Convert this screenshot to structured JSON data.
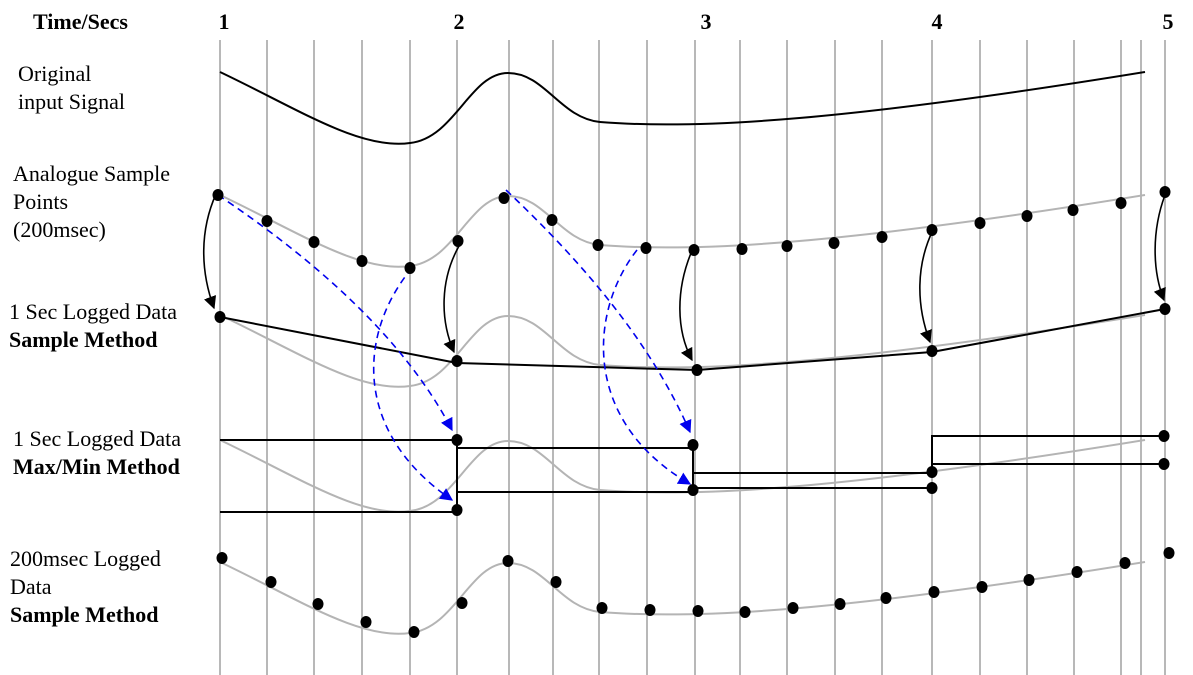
{
  "header": {
    "axis_title": "Time/Secs",
    "ticks": [
      "1",
      "2",
      "3",
      "4",
      "5"
    ]
  },
  "rows": {
    "original": {
      "line1": "Original",
      "line2": "input Signal"
    },
    "analogue": {
      "line1": "Analogue Sample",
      "line2": "Points",
      "line3": "(200msec)"
    },
    "sample_1s": {
      "line1": "1 Sec Logged Data",
      "line2": "Sample Method"
    },
    "maxmin_1s": {
      "line1": "1 Sec Logged Data",
      "line2": "Max/Min Method"
    },
    "sample_200ms": {
      "line1": "200msec Logged",
      "line2": "Data",
      "line3": "Sample Method"
    }
  },
  "colors": {
    "grid": "#b8b8b8",
    "signal": "#000000",
    "ghost_signal": "#b4b4b4",
    "point": "#000000",
    "mapping_arrow": "#000000",
    "maxmin_arrow": "#0000ee"
  }
}
